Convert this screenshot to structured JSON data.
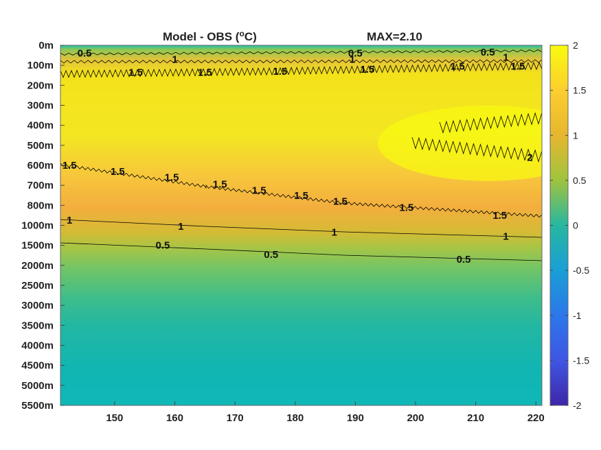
{
  "chart_data": {
    "type": "heatmap",
    "title_text": "Model - OBS (",
    "title_unit_sup": "o",
    "title_unit": "C)",
    "annotation": "MAX=2.10",
    "x": {
      "ticks": [
        150,
        160,
        170,
        180,
        190,
        200,
        210,
        220
      ],
      "range": [
        141,
        221
      ]
    },
    "y": {
      "tick_labels": [
        "0m",
        "100m",
        "200m",
        "300m",
        "400m",
        "500m",
        "600m",
        "700m",
        "800m",
        "1000m",
        "1500m",
        "2000m",
        "2500m",
        "3000m",
        "3500m",
        "4000m",
        "4500m",
        "5000m",
        "5500m"
      ]
    },
    "colorbar": {
      "range": [
        -2,
        2
      ],
      "ticks": [
        "2",
        "1.5",
        "1",
        "0.5",
        "0",
        "-0.5",
        "-1",
        "-1.5",
        "-2"
      ]
    },
    "contours": [
      {
        "level": 0.5,
        "labels": [
          {
            "text": "0.5",
            "x": 145,
            "y_index": 0.4
          },
          {
            "text": "0.5",
            "x": 158,
            "y_index": 10
          },
          {
            "text": "0.5",
            "x": 176,
            "y_index": 10.45
          },
          {
            "text": "0.5",
            "x": 190,
            "y_index": 0.4
          },
          {
            "text": "0.5",
            "x": 208,
            "y_index": 10.7
          },
          {
            "text": "0.5",
            "x": 212,
            "y_index": 0.35
          }
        ]
      },
      {
        "level": 1,
        "labels": [
          {
            "text": "1",
            "x": 160,
            "y_index": 0.7
          },
          {
            "text": "1",
            "x": 142.5,
            "y_index": 8.75
          },
          {
            "text": "1",
            "x": 161,
            "y_index": 9.05
          },
          {
            "text": "1",
            "x": 186.5,
            "y_index": 9.35
          },
          {
            "text": "1",
            "x": 189.5,
            "y_index": 0.7
          },
          {
            "text": "1",
            "x": 215,
            "y_index": 9.55
          },
          {
            "text": "1",
            "x": 215,
            "y_index": 0.6
          }
        ]
      },
      {
        "level": 1.5,
        "labels": [
          {
            "text": "1.5",
            "x": 153.5,
            "y_index": 1.35
          },
          {
            "text": "1.5",
            "x": 165,
            "y_index": 1.35
          },
          {
            "text": "1.5",
            "x": 177.5,
            "y_index": 1.3
          },
          {
            "text": "1.5",
            "x": 192,
            "y_index": 1.2
          },
          {
            "text": "1.5",
            "x": 207,
            "y_index": 1.05
          },
          {
            "text": "1.5",
            "x": 217,
            "y_index": 1.05
          },
          {
            "text": "1.5",
            "x": 142.5,
            "y_index": 6.0
          },
          {
            "text": "1.5",
            "x": 150.5,
            "y_index": 6.3
          },
          {
            "text": "1.5",
            "x": 159.5,
            "y_index": 6.6
          },
          {
            "text": "1.5",
            "x": 167.5,
            "y_index": 6.95
          },
          {
            "text": "1.5",
            "x": 174,
            "y_index": 7.25
          },
          {
            "text": "1.5",
            "x": 181,
            "y_index": 7.5
          },
          {
            "text": "1.5",
            "x": 187.5,
            "y_index": 7.8
          },
          {
            "text": "1.5",
            "x": 198.5,
            "y_index": 8.1
          },
          {
            "text": "1.5",
            "x": 214,
            "y_index": 8.5
          }
        ]
      },
      {
        "level": 2,
        "labels": [
          {
            "text": "2",
            "x": 219,
            "y_index": 5.6
          }
        ]
      }
    ]
  }
}
